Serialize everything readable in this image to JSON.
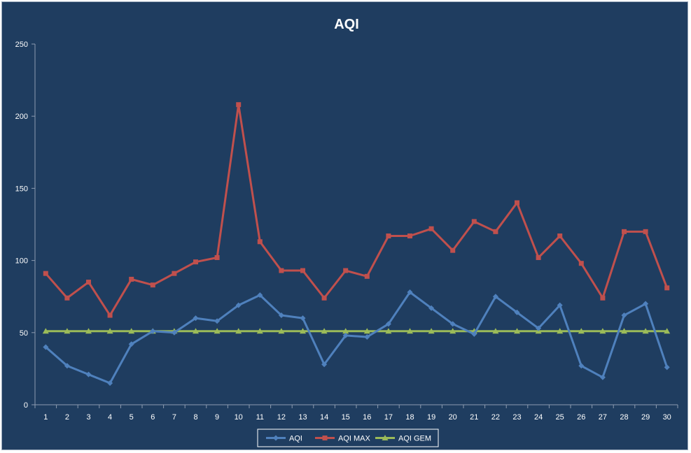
{
  "chart_data": {
    "type": "line",
    "title": "AQI",
    "xlabel": "",
    "ylabel": "",
    "ylim": [
      0,
      250
    ],
    "yticks": [
      0,
      50,
      100,
      150,
      200,
      250
    ],
    "grid": false,
    "legend_position": "bottom",
    "categories": [
      "1",
      "2",
      "3",
      "4",
      "5",
      "6",
      "7",
      "8",
      "9",
      "10",
      "11",
      "12",
      "13",
      "14",
      "15",
      "16",
      "17",
      "18",
      "19",
      "20",
      "21",
      "22",
      "23",
      "24",
      "25",
      "26",
      "27",
      "28",
      "29",
      "30"
    ],
    "series": [
      {
        "name": "AQI",
        "color": "#4f81bd",
        "marker": "diamond",
        "values": [
          40,
          27,
          21,
          15,
          42,
          51,
          50,
          60,
          58,
          69,
          76,
          62,
          60,
          28,
          48,
          47,
          56,
          78,
          67,
          56,
          49,
          75,
          64,
          53,
          69,
          27,
          19,
          62,
          70,
          26
        ]
      },
      {
        "name": "AQI MAX",
        "color": "#c0504d",
        "marker": "square",
        "values": [
          91,
          74,
          85,
          62,
          87,
          83,
          91,
          99,
          102,
          208,
          113,
          93,
          93,
          74,
          93,
          89,
          117,
          117,
          122,
          107,
          127,
          120,
          140,
          102,
          117,
          98,
          74,
          120,
          120,
          81
        ]
      },
      {
        "name": "AQI GEM",
        "color": "#9bbb59",
        "marker": "triangle",
        "values": [
          51,
          51,
          51,
          51,
          51,
          51,
          51,
          51,
          51,
          51,
          51,
          51,
          51,
          51,
          51,
          51,
          51,
          51,
          51,
          51,
          51,
          51,
          51,
          51,
          51,
          51,
          51,
          51,
          51,
          51
        ]
      }
    ]
  }
}
